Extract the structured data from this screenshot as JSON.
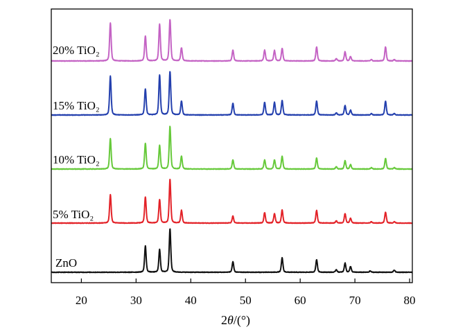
{
  "chart_data": {
    "type": "line",
    "title": "",
    "xlabel": "2θ/(°)",
    "ylabel": "",
    "xlim": [
      14.5,
      80.5
    ],
    "xticks": [
      20,
      30,
      40,
      50,
      60,
      70,
      80
    ],
    "grid": false,
    "legend": "inline-left",
    "series": [
      {
        "name": "20% TiO₂",
        "color": "#c463c4",
        "x": [
          25.3,
          31.7,
          34.3,
          36.2,
          38.3,
          47.7,
          53.5,
          55.3,
          56.7,
          63.0,
          66.6,
          68.2,
          69.2,
          73.0,
          75.6,
          77.2
        ],
        "y": [
          87,
          57,
          84,
          95,
          30,
          25,
          25,
          24,
          29,
          32,
          5,
          21,
          10,
          3,
          32,
          3
        ]
      },
      {
        "name": "15% TiO₂",
        "color": "#2440ae",
        "x": [
          25.3,
          31.7,
          34.3,
          36.2,
          38.3,
          47.7,
          53.5,
          55.3,
          56.7,
          63.0,
          66.6,
          68.2,
          69.2,
          73.0,
          75.6,
          77.2
        ],
        "y": [
          89,
          60,
          92,
          100,
          32,
          27,
          29,
          29,
          33,
          32,
          5,
          22,
          11,
          3,
          32,
          3
        ]
      },
      {
        "name": "10% TiO₂",
        "color": "#66c93a",
        "x": [
          25.3,
          31.7,
          34.3,
          36.2,
          38.3,
          47.7,
          53.5,
          55.3,
          56.7,
          63.0,
          66.6,
          68.2,
          69.2,
          73.0,
          75.6,
          77.2
        ],
        "y": [
          70,
          59,
          54,
          98,
          29,
          21,
          21,
          21,
          29,
          25,
          5,
          19,
          10,
          3,
          24,
          3
        ]
      },
      {
        "name": "5% TiO₂",
        "color": "#e32228",
        "x": [
          25.3,
          31.7,
          34.3,
          36.2,
          38.3,
          47.7,
          53.5,
          55.3,
          56.7,
          63.0,
          66.6,
          68.2,
          69.2,
          73.0,
          75.6,
          77.2
        ],
        "y": [
          65,
          60,
          54,
          100,
          29,
          16,
          24,
          22,
          30,
          29,
          5,
          22,
          11,
          3,
          25,
          3
        ]
      },
      {
        "name": "ZnO",
        "color": "#111111",
        "x": [
          31.7,
          34.3,
          36.2,
          47.7,
          56.7,
          63.0,
          66.6,
          68.2,
          69.2,
          72.8,
          77.2
        ],
        "y": [
          60,
          52,
          100,
          24,
          33,
          29,
          6,
          21,
          13,
          3,
          5
        ]
      }
    ]
  }
}
